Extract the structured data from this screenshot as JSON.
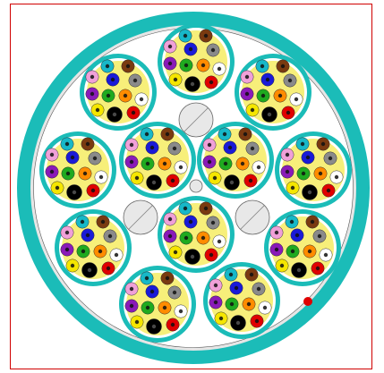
{
  "diagram": {
    "type": "fiber-optic-cable-cross-section",
    "colors": {
      "frame_border": "#d00000",
      "jacket": "#1bbcb8",
      "jacket_inner_ring": "#e6e6e6",
      "cable_interior": "#ffffff",
      "tube_ring": "#1bbcb8",
      "tube_gap": "#ffffff",
      "tube_gel": "#f7ef7a",
      "filler": "#e8e8e8",
      "ripcord": "#e00000"
    },
    "tube_count": 13,
    "fibers_per_tube": 12,
    "fiber_colors": [
      {
        "name": "blue",
        "hex": "#1a1ad8"
      },
      {
        "name": "orange",
        "hex": "#ff8c00"
      },
      {
        "name": "green",
        "hex": "#1faa1f"
      },
      {
        "name": "brown",
        "hex": "#7a3a10"
      },
      {
        "name": "slate",
        "hex": "#8a8a8a"
      },
      {
        "name": "white",
        "hex": "#ffffff"
      },
      {
        "name": "red",
        "hex": "#e00000"
      },
      {
        "name": "black",
        "hex": "#000000"
      },
      {
        "name": "yellow",
        "hex": "#f5e600"
      },
      {
        "name": "violet",
        "hex": "#8a1ab8"
      },
      {
        "name": "rose",
        "hex": "#f0a0d8"
      },
      {
        "name": "aqua",
        "hex": "#17b8c8"
      }
    ],
    "filler_count": 3,
    "ripcord_count": 1
  }
}
